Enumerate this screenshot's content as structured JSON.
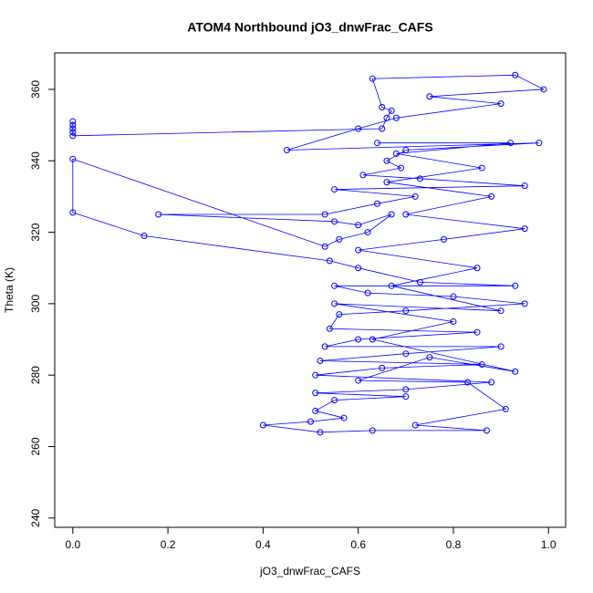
{
  "chart_data": {
    "type": "line",
    "title": "ATOM4 Northbound jO3_dnwFrac_CAFS",
    "x_label": "jO3_dnwFrac_CAFS",
    "y_label": "Theta (K)",
    "color": "#0000ff",
    "marker": "circle",
    "xlim": [
      -0.038,
      1.036
    ],
    "ylim": [
      237.4,
      370.2
    ],
    "xticks": [
      {
        "value": 0,
        "label": "0.0"
      },
      0.2,
      0.4,
      0.6,
      0.8,
      {
        "value": 1,
        "label": "1.0"
      }
    ],
    "yticks": [
      240,
      260,
      280,
      300,
      320,
      340,
      360
    ],
    "x": [
      0,
      0,
      0,
      0,
      0,
      0.65,
      0.66,
      0.67,
      0.65,
      0.63,
      0.93,
      0.99,
      0.75,
      0.9,
      0.68,
      0.6,
      0.45,
      0.98,
      0.7,
      0.66,
      0.69,
      0.61,
      0.73,
      0.95,
      0.55,
      0.72,
      0.64,
      0.53,
      0.18,
      0.55,
      0.6,
      0.67,
      0.62,
      0.56,
      0.53,
      0,
      0,
      0.15,
      0.54,
      0.6,
      0.73,
      0.93,
      0.55,
      0.62,
      0.8,
      0.95,
      0.7,
      0.56,
      0.54,
      0.85,
      0.6,
      0.53,
      0.9,
      0.7,
      0.52,
      0.86,
      0.65,
      0.51,
      0.88,
      0.7,
      0.51,
      0.7,
      0.55,
      0.51,
      0.57,
      0.5,
      0.4,
      0.52,
      0.63,
      0.87,
      0.72,
      0.91,
      0.83,
      0.6,
      0.75,
      0.93,
      0.63,
      0.8,
      0.55,
      0.9,
      0.67,
      0.85,
      0.6,
      0.78,
      0.95,
      0.7,
      0.88,
      0.66,
      0.86,
      0.68,
      0.92,
      0.64
    ],
    "values": [
      351,
      350,
      349,
      348,
      347,
      349,
      352,
      354,
      355,
      363,
      364,
      360,
      358,
      356,
      352,
      349,
      343,
      345,
      343,
      340,
      338,
      336,
      335,
      333,
      332,
      330,
      328,
      325,
      325,
      323,
      322,
      325,
      320,
      318,
      316,
      340.5,
      325.5,
      319,
      312,
      310,
      306,
      305,
      305,
      303,
      302,
      300,
      298,
      297,
      293,
      292,
      290,
      288,
      288,
      286,
      284,
      283,
      282,
      280,
      278,
      276,
      275,
      274,
      273,
      270,
      268,
      267,
      266,
      264,
      264.5,
      264.5,
      266,
      270.5,
      278,
      278.5,
      285,
      281,
      290,
      295,
      300,
      298,
      305,
      310,
      315,
      318,
      321,
      325,
      330,
      334,
      338,
      342,
      345,
      345
    ]
  }
}
